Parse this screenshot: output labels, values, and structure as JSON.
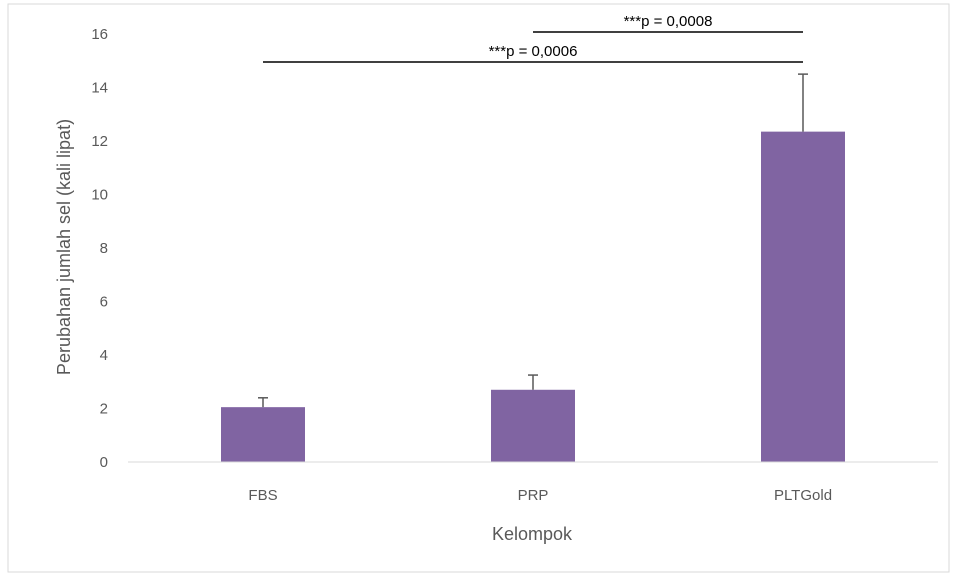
{
  "chart_data": {
    "type": "bar",
    "title": "",
    "xlabel": "Kelompok",
    "ylabel": "Perubahan jumlah sel (kali lipat)",
    "categories": [
      "FBS",
      "PRP",
      "PLTGold"
    ],
    "values": [
      2.05,
      2.7,
      12.35
    ],
    "error_upper": [
      0.35,
      0.55,
      2.15
    ],
    "ylim": [
      0,
      16
    ],
    "yticks": [
      "0",
      "2",
      "4",
      "6",
      "8",
      "10",
      "12",
      "14",
      "16"
    ],
    "grid": false,
    "legend": "none",
    "bar_color": "#8064a2",
    "annotations": [
      {
        "text": "***p = 0,0008",
        "from": "PRP",
        "to": "PLTGold"
      },
      {
        "text": "***p = 0,0006",
        "from": "FBS",
        "to": "PLTGold"
      }
    ]
  }
}
